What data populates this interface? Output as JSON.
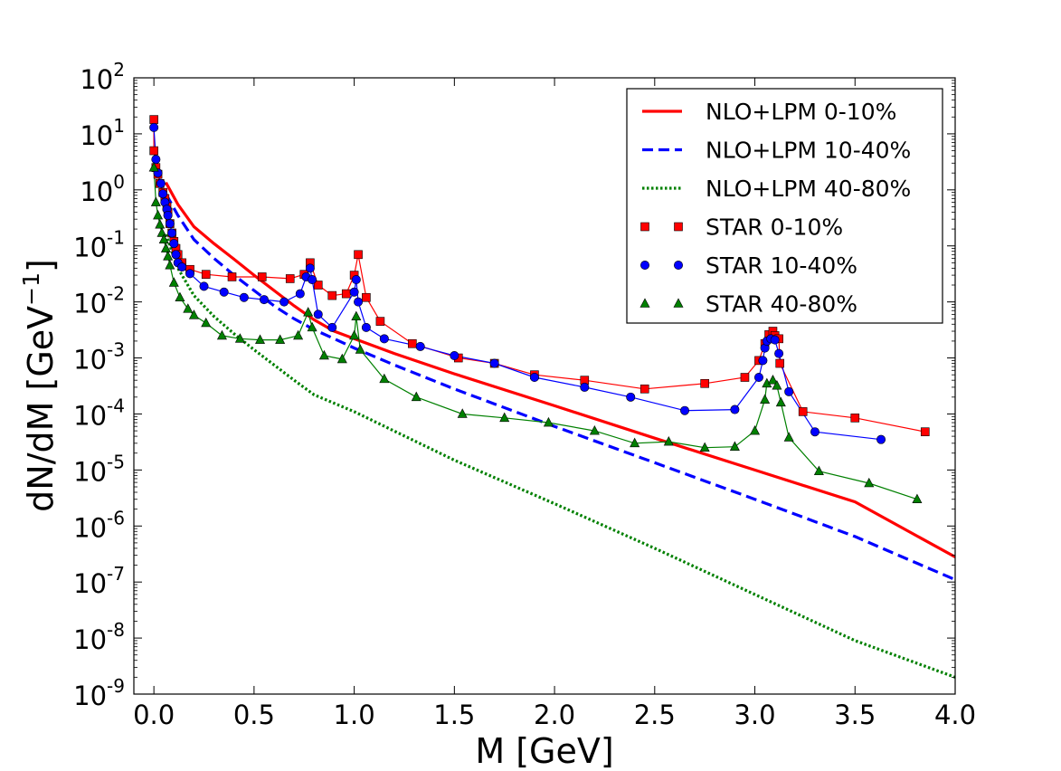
{
  "chart_data": {
    "type": "line",
    "xlabel": "M [GeV]",
    "ylabel": "dN/dM [GeV",
    "ylabel_exp": "−1",
    "ylabel_close": "]",
    "xlim": [
      -0.1,
      4.0
    ],
    "ylim_log10": [
      -9,
      2
    ],
    "yscale": "log",
    "grid": false,
    "legend_position": "top-right",
    "x_ticks": [
      "0.0",
      "0.5",
      "1.0",
      "1.5",
      "2.0",
      "2.5",
      "3.0",
      "3.5",
      "4.0"
    ],
    "y_tick_base": "10",
    "y_tick_exponents": [
      "2",
      "1",
      "0",
      "-1",
      "-2",
      "-3",
      "-4",
      "-5",
      "-6",
      "-7",
      "-8",
      "-9"
    ],
    "series": [
      {
        "name": "NLO+LPM 0-10%",
        "style": "solid",
        "color": "#ff0000",
        "points": [
          [
            0.06,
            1.35
          ],
          [
            0.12,
            0.55
          ],
          [
            0.2,
            0.22
          ],
          [
            0.3,
            0.11
          ],
          [
            0.4,
            0.058
          ],
          [
            0.5,
            0.03
          ],
          [
            0.6,
            0.016
          ],
          [
            0.7,
            0.0085
          ],
          [
            0.8,
            0.0048
          ],
          [
            0.9,
            0.003
          ],
          [
            1.0,
            0.0022
          ],
          [
            1.2,
            0.0012
          ],
          [
            1.5,
            0.00052
          ],
          [
            2.0,
            0.00014
          ],
          [
            2.5,
            3.7e-05
          ],
          [
            3.0,
            1e-05
          ],
          [
            3.5,
            2.7e-06
          ],
          [
            4.0,
            2.8e-07
          ]
        ]
      },
      {
        "name": "NLO+LPM 10-40%",
        "style": "dashed",
        "color": "#0000ff",
        "points": [
          [
            0.06,
            0.85
          ],
          [
            0.12,
            0.35
          ],
          [
            0.2,
            0.13
          ],
          [
            0.3,
            0.06
          ],
          [
            0.4,
            0.03
          ],
          [
            0.5,
            0.016
          ],
          [
            0.6,
            0.0085
          ],
          [
            0.7,
            0.005
          ],
          [
            0.8,
            0.0032
          ],
          [
            0.9,
            0.0022
          ],
          [
            1.0,
            0.0015
          ],
          [
            1.2,
            0.00075
          ],
          [
            1.5,
            0.00028
          ],
          [
            2.0,
            6e-05
          ],
          [
            2.5,
            1.35e-05
          ],
          [
            3.0,
            3e-06
          ],
          [
            3.5,
            6.5e-07
          ],
          [
            4.0,
            1.1e-07
          ]
        ]
      },
      {
        "name": "NLO+LPM 40-80%",
        "style": "dotted",
        "color": "#008000",
        "points": [
          [
            0.06,
            0.16
          ],
          [
            0.12,
            0.04
          ],
          [
            0.2,
            0.013
          ],
          [
            0.3,
            0.0055
          ],
          [
            0.4,
            0.0027
          ],
          [
            0.5,
            0.0014
          ],
          [
            0.6,
            0.00075
          ],
          [
            0.7,
            0.0004
          ],
          [
            0.8,
            0.00022
          ],
          [
            1.0,
            0.00011
          ],
          [
            1.5,
            1.5e-05
          ],
          [
            2.0,
            2.5e-06
          ],
          [
            2.5,
            4e-07
          ],
          [
            3.0,
            6e-08
          ],
          [
            3.5,
            9e-09
          ],
          [
            4.0,
            2e-09
          ]
        ]
      },
      {
        "name": "STAR 0-10%",
        "marker": "square",
        "color": "#ff0000",
        "points": [
          [
            0.0,
            18
          ],
          [
            0.0,
            5
          ],
          [
            0.01,
            2.5
          ],
          [
            0.02,
            1.9
          ],
          [
            0.03,
            1.3
          ],
          [
            0.045,
            0.9
          ],
          [
            0.055,
            0.7
          ],
          [
            0.065,
            0.5
          ],
          [
            0.07,
            0.4
          ],
          [
            0.08,
            0.25
          ],
          [
            0.09,
            0.17
          ],
          [
            0.1,
            0.12
          ],
          [
            0.11,
            0.09
          ],
          [
            0.12,
            0.07
          ],
          [
            0.14,
            0.05
          ],
          [
            0.18,
            0.038
          ],
          [
            0.26,
            0.031
          ],
          [
            0.39,
            0.028
          ],
          [
            0.54,
            0.028
          ],
          [
            0.68,
            0.026
          ],
          [
            0.75,
            0.031
          ],
          [
            0.78,
            0.05
          ],
          [
            0.82,
            0.02
          ],
          [
            0.89,
            0.013
          ],
          [
            0.96,
            0.014
          ],
          [
            1.0,
            0.03
          ],
          [
            1.02,
            0.07
          ],
          [
            1.06,
            0.012
          ],
          [
            1.13,
            0.0045
          ],
          [
            1.29,
            0.0018
          ],
          [
            1.52,
            0.001
          ],
          [
            1.7,
            0.0008
          ],
          [
            1.9,
            0.0005
          ],
          [
            2.15,
            0.0004
          ],
          [
            2.45,
            0.00028
          ],
          [
            2.75,
            0.00035
          ],
          [
            2.95,
            0.00045
          ],
          [
            3.02,
            0.0009
          ],
          [
            3.05,
            0.0018
          ],
          [
            3.07,
            0.0026
          ],
          [
            3.09,
            0.003
          ],
          [
            3.1,
            0.0025
          ],
          [
            3.12,
            0.0022
          ],
          [
            3.125,
            0.0008
          ],
          [
            3.24,
            0.00011
          ],
          [
            3.5,
            8.5e-05
          ],
          [
            3.85,
            4.8e-05
          ]
        ]
      },
      {
        "name": "STAR 10-40%",
        "marker": "circle",
        "color": "#0000ff",
        "points": [
          [
            0.0,
            13
          ],
          [
            0.01,
            3.5
          ],
          [
            0.02,
            2.0
          ],
          [
            0.035,
            1.3
          ],
          [
            0.045,
            0.85
          ],
          [
            0.055,
            0.6
          ],
          [
            0.065,
            0.45
          ],
          [
            0.07,
            0.35
          ],
          [
            0.08,
            0.25
          ],
          [
            0.09,
            0.17
          ],
          [
            0.1,
            0.11
          ],
          [
            0.11,
            0.07
          ],
          [
            0.12,
            0.05
          ],
          [
            0.14,
            0.042
          ],
          [
            0.18,
            0.032
          ],
          [
            0.25,
            0.019
          ],
          [
            0.35,
            0.015
          ],
          [
            0.45,
            0.012
          ],
          [
            0.55,
            0.011
          ],
          [
            0.65,
            0.01
          ],
          [
            0.73,
            0.014
          ],
          [
            0.76,
            0.028
          ],
          [
            0.78,
            0.04
          ],
          [
            0.79,
            0.025
          ],
          [
            0.82,
            0.006
          ],
          [
            0.89,
            0.0035
          ],
          [
            1.0,
            0.015
          ],
          [
            1.01,
            0.025
          ],
          [
            1.02,
            0.01
          ],
          [
            1.06,
            0.0035
          ],
          [
            1.15,
            0.0022
          ],
          [
            1.33,
            0.0016
          ],
          [
            1.5,
            0.0011
          ],
          [
            1.7,
            0.0008
          ],
          [
            1.9,
            0.00045
          ],
          [
            2.15,
            0.0003
          ],
          [
            2.38,
            0.0002
          ],
          [
            2.65,
            0.000115
          ],
          [
            2.9,
            0.00012
          ],
          [
            3.02,
            0.00045
          ],
          [
            3.04,
            0.0009
          ],
          [
            3.05,
            0.0015
          ],
          [
            3.06,
            0.002
          ],
          [
            3.08,
            0.0022
          ],
          [
            3.1,
            0.0021
          ],
          [
            3.12,
            0.0012
          ],
          [
            3.17,
            0.00025
          ],
          [
            3.3,
            4.8e-05
          ],
          [
            3.63,
            3.5e-05
          ]
        ]
      },
      {
        "name": "STAR 40-80%",
        "marker": "triangle",
        "color": "#008000",
        "points": [
          [
            0.0,
            2.5
          ],
          [
            0.01,
            0.6
          ],
          [
            0.02,
            0.35
          ],
          [
            0.03,
            0.24
          ],
          [
            0.04,
            0.17
          ],
          [
            0.05,
            0.13
          ],
          [
            0.06,
            0.09
          ],
          [
            0.07,
            0.065
          ],
          [
            0.08,
            0.045
          ],
          [
            0.1,
            0.022
          ],
          [
            0.13,
            0.012
          ],
          [
            0.17,
            0.0075
          ],
          [
            0.2,
            0.0058
          ],
          [
            0.26,
            0.0042
          ],
          [
            0.34,
            0.0025
          ],
          [
            0.43,
            0.0022
          ],
          [
            0.53,
            0.0021
          ],
          [
            0.63,
            0.0021
          ],
          [
            0.72,
            0.0025
          ],
          [
            0.77,
            0.0065
          ],
          [
            0.79,
            0.0035
          ],
          [
            0.85,
            0.0011
          ],
          [
            0.94,
            0.00095
          ],
          [
            1.0,
            0.0025
          ],
          [
            1.01,
            0.0055
          ],
          [
            1.03,
            0.0014
          ],
          [
            1.15,
            0.00042
          ],
          [
            1.31,
            0.0002
          ],
          [
            1.54,
            0.0001
          ],
          [
            1.75,
            8.5e-05
          ],
          [
            1.97,
            7e-05
          ],
          [
            2.2,
            5e-05
          ],
          [
            2.4,
            3e-05
          ],
          [
            2.57,
            3.2e-05
          ],
          [
            2.75,
            2.5e-05
          ],
          [
            2.9,
            2.6e-05
          ],
          [
            3.0,
            5e-05
          ],
          [
            3.05,
            0.00018
          ],
          [
            3.06,
            0.00035
          ],
          [
            3.09,
            0.0004
          ],
          [
            3.11,
            0.00032
          ],
          [
            3.13,
            0.00016
          ],
          [
            3.17,
            3.8e-05
          ],
          [
            3.32,
            9.5e-06
          ],
          [
            3.57,
            5.8e-06
          ],
          [
            3.81,
            3e-06
          ]
        ]
      }
    ]
  }
}
